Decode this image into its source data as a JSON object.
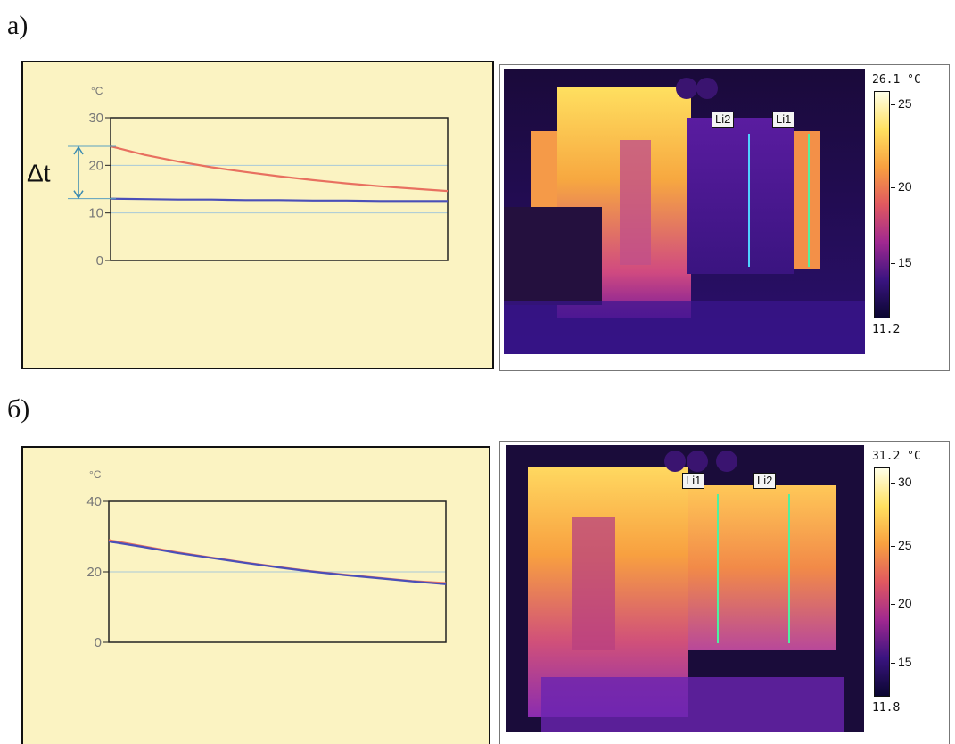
{
  "panels": [
    {
      "label": "а)",
      "delta_label": "Δt",
      "scale": {
        "max": "26.1 °C",
        "min": "11.2",
        "ticks": [
          "25",
          "20",
          "15"
        ]
      },
      "line_labels": [
        "Li2",
        "Li1"
      ]
    },
    {
      "label": "б)",
      "scale": {
        "max": "31.2 °C",
        "min": "11.8",
        "ticks": [
          "30",
          "25",
          "20",
          "15"
        ]
      },
      "line_labels": [
        "Li1",
        "Li2"
      ]
    }
  ],
  "chart_data": [
    {
      "type": "line",
      "unit": "°C",
      "ylim": [
        0,
        30
      ],
      "yticks": [
        "0",
        "10",
        "20",
        "30"
      ],
      "grid": true,
      "x": [
        0,
        1,
        2,
        3,
        4,
        5,
        6,
        7,
        8,
        9,
        10
      ],
      "series": [
        {
          "color": "#e87060",
          "values": [
            24.0,
            22.2,
            20.8,
            19.6,
            18.6,
            17.7,
            16.9,
            16.2,
            15.6,
            15.1,
            14.6
          ]
        },
        {
          "color": "#4a4fb8",
          "values": [
            13.0,
            12.9,
            12.8,
            12.8,
            12.7,
            12.7,
            12.6,
            12.6,
            12.5,
            12.5,
            12.5
          ]
        }
      ]
    },
    {
      "type": "line",
      "unit": "°C",
      "ylim": [
        0,
        40
      ],
      "yticks": [
        "0",
        "20",
        "40"
      ],
      "grid": true,
      "x": [
        0,
        1,
        2,
        3,
        4,
        5,
        6,
        7,
        8,
        9,
        10
      ],
      "series": [
        {
          "color": "#e87060",
          "values": [
            29.0,
            27.3,
            25.6,
            24.1,
            22.7,
            21.4,
            20.2,
            19.2,
            18.3,
            17.4,
            16.8
          ]
        },
        {
          "color": "#4a4fb8",
          "values": [
            28.6,
            27.1,
            25.4,
            24.0,
            22.6,
            21.3,
            20.1,
            19.1,
            18.2,
            17.3,
            16.5
          ]
        }
      ]
    }
  ]
}
